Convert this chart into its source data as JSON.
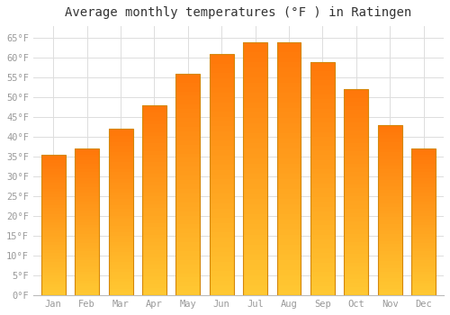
{
  "title": "Average monthly temperatures (°F ) in Ratingen",
  "months": [
    "Jan",
    "Feb",
    "Mar",
    "Apr",
    "May",
    "Jun",
    "Jul",
    "Aug",
    "Sep",
    "Oct",
    "Nov",
    "Dec"
  ],
  "values": [
    35.5,
    37,
    42,
    48,
    56,
    61,
    64,
    64,
    59,
    52,
    43,
    37
  ],
  "bar_color_main": "#FFA500",
  "bar_color_light": "#FFD060",
  "bar_edge_color": "#D4870A",
  "ylim": [
    0,
    68
  ],
  "yticks": [
    0,
    5,
    10,
    15,
    20,
    25,
    30,
    35,
    40,
    45,
    50,
    55,
    60,
    65
  ],
  "ytick_labels": [
    "0°F",
    "5°F",
    "10°F",
    "15°F",
    "20°F",
    "25°F",
    "30°F",
    "35°F",
    "40°F",
    "45°F",
    "50°F",
    "55°F",
    "60°F",
    "65°F"
  ],
  "background_color": "#ffffff",
  "grid_color": "#dddddd",
  "title_fontsize": 10,
  "tick_fontsize": 7.5,
  "tick_color": "#999999",
  "title_color": "#333333"
}
